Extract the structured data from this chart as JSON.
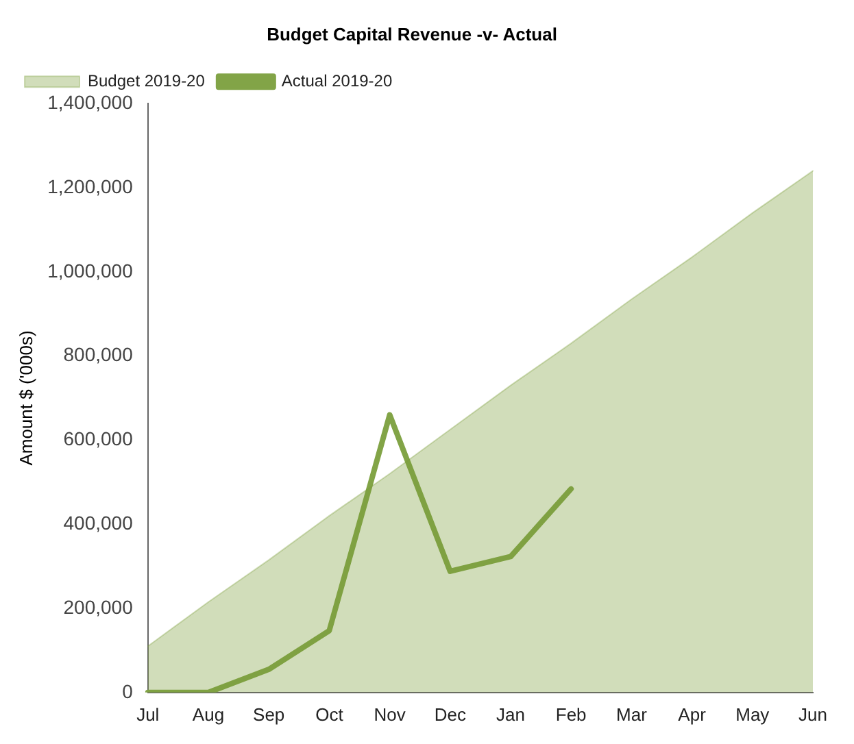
{
  "chart_data": {
    "type": "line",
    "title": "Budget Capital Revenue -v- Actual",
    "ylabel": "Amount $ ('000s)",
    "categories": [
      "Jul",
      "Aug",
      "Sep",
      "Oct",
      "Nov",
      "Dec",
      "Jan",
      "Feb",
      "Mar",
      "Apr",
      "May",
      "Jun"
    ],
    "series": [
      {
        "name": "Budget 2019-20",
        "type": "area",
        "color": "#7a9e3a",
        "values": [
          110000,
          215000,
          315000,
          420000,
          520000,
          625000,
          730000,
          830000,
          935000,
          1035000,
          1140000,
          1240000
        ]
      },
      {
        "name": "Actual 2019-20",
        "type": "line",
        "color": "#82a447",
        "values": [
          0,
          0,
          55000,
          147000,
          660000,
          288000,
          323000,
          484000,
          null,
          null,
          null,
          null
        ]
      }
    ],
    "ylim": [
      0,
      1400000
    ],
    "yticks": [
      0,
      {
        "value": 200000,
        "label": "200,000"
      },
      {
        "value": 400000,
        "label": "400,000"
      },
      {
        "value": 600000,
        "label": "600,000"
      },
      {
        "value": 800000,
        "label": "800,000"
      },
      {
        "value": 1000000,
        "label": "1,000,000"
      },
      {
        "value": 1200000,
        "label": "1,200,000"
      },
      {
        "value": 1400000,
        "label": "1,400,000"
      }
    ],
    "grid": false,
    "legend": "top left",
    "marker": "none"
  }
}
